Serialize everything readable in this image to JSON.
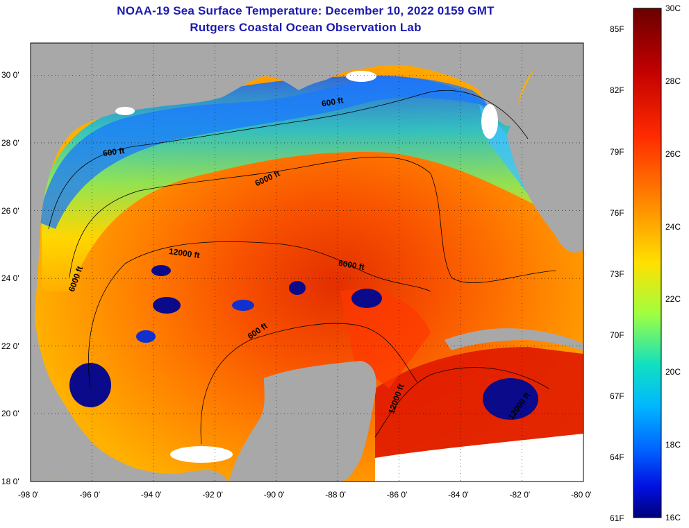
{
  "header": {
    "title": "NOAA-19 Sea Surface Temperature:  December 10, 2022 0159 GMT",
    "subtitle": "Rutgers Coastal Ocean Observation Lab"
  },
  "axes": {
    "lon_labels": [
      "-98 0'",
      "-96 0'",
      "-94 0'",
      "-92 0'",
      "-90 0'",
      "-88 0'",
      "-86 0'",
      "-84 0'",
      "-82 0'",
      "-80 0'"
    ],
    "lat_labels": [
      "30 0'",
      "28 0'",
      "26 0'",
      "24 0'",
      "22 0'",
      "20 0'",
      "18 0'"
    ]
  },
  "contours": {
    "labels": [
      "600 ft",
      "600 ft",
      "6000 ft",
      "12000 ft",
      "6000 ft",
      "6000 ft",
      "600 ft",
      "12000 ft",
      "12000 ft"
    ]
  },
  "colorbar": {
    "fahrenheit": [
      "85F",
      "82F",
      "79F",
      "76F",
      "73F",
      "70F",
      "67F",
      "64F",
      "61F"
    ],
    "celsius": [
      "30C",
      "28C",
      "26C",
      "24C",
      "22C",
      "20C",
      "18C",
      "16C"
    ]
  },
  "colors": {
    "land": "#a8a8a8",
    "cloud": "#ffffff",
    "title": "#1a1ab0"
  }
}
